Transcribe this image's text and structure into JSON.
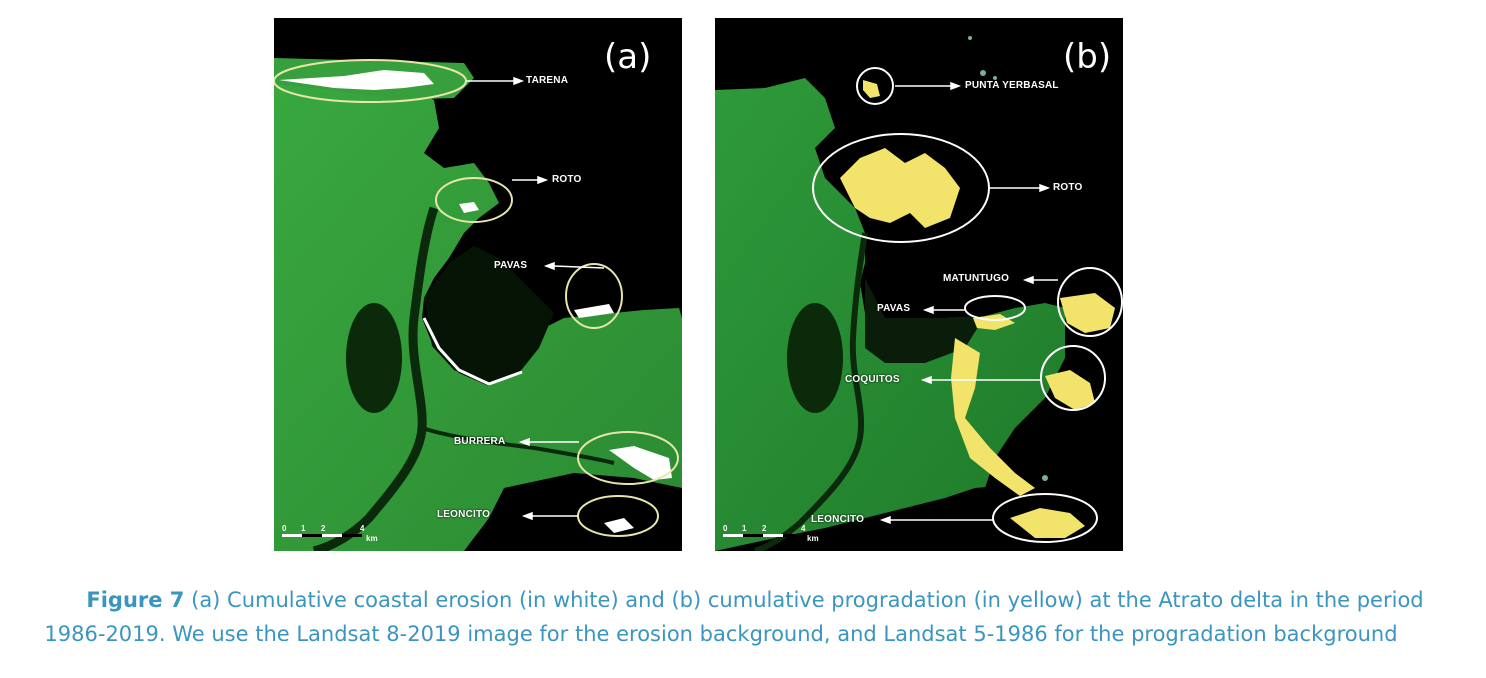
{
  "panels": [
    {
      "tag": "(a)",
      "labels": {
        "tarena": "TARENA",
        "roto": "ROTO",
        "pavas": "PAVAS",
        "burrera": "BURRERA",
        "leoncito": "LEONCITO"
      },
      "scale": {
        "ticks": [
          "0",
          "1",
          "2",
          "4"
        ],
        "unit": "km"
      },
      "highlight_color": "#ffffff"
    },
    {
      "tag": "(b)",
      "labels": {
        "punta_yerbasal": "PUNTA YERBASAL",
        "roto": "ROTO",
        "matuntugo": "MATUNTUGO",
        "pavas": "PAVAS",
        "coquitos": "COQUITOS",
        "leoncito": "LEONCITO"
      },
      "scale": {
        "ticks": [
          "0",
          "1",
          "2",
          "4"
        ],
        "unit": "km"
      },
      "highlight_color": "#f2e36a"
    }
  ],
  "caption": {
    "figure_label": "Figure 7",
    "line1": "(a) Cumulative coastal erosion (in white) and (b) cumulative progradation (in yellow) at the Atrato delta in the period",
    "line2": "1986-2019. We use the Landsat 8-2019 image for the erosion background, and Landsat 5-1986 for the progradation background"
  },
  "colors": {
    "land": "#2f9a3a",
    "sea": "#000000",
    "ellipse": "#e8e5a8",
    "caption": "#3a95bf"
  }
}
